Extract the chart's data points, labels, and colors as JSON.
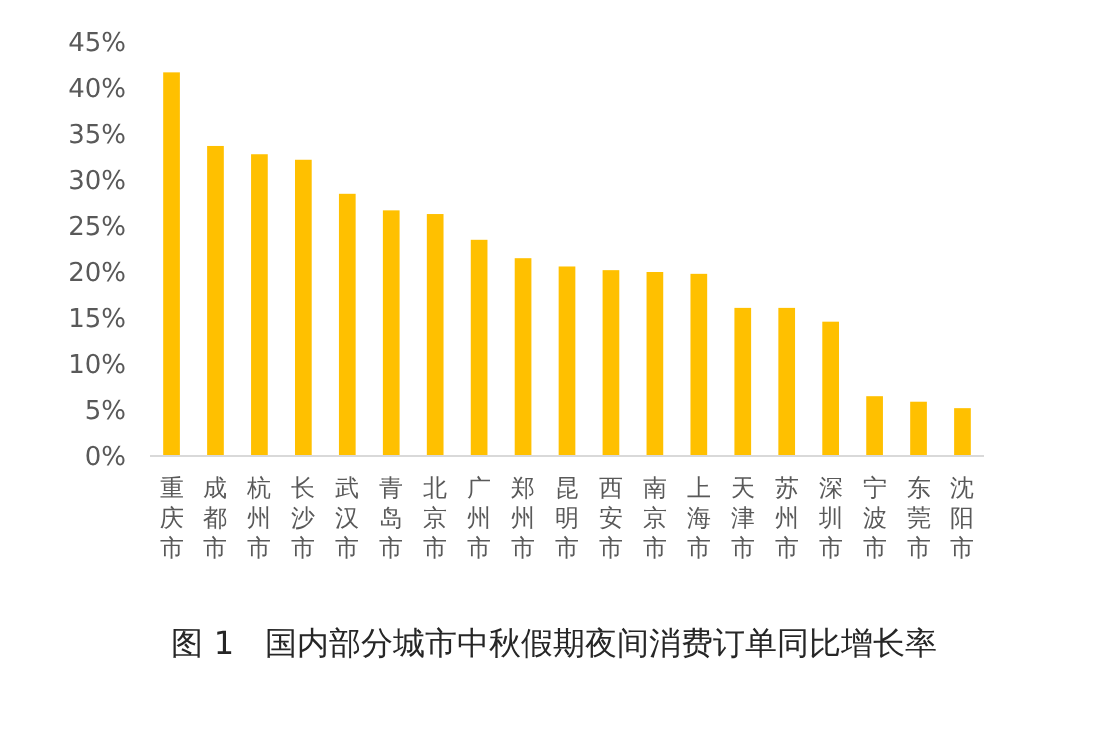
{
  "chart_data": {
    "type": "bar",
    "title": "图 1   国内部分城市中秋假期夜间消费订单同比增长率",
    "categories": [
      "重庆市",
      "成都市",
      "杭州市",
      "长沙市",
      "武汉市",
      "青岛市",
      "北京市",
      "广州市",
      "郑州市",
      "昆明市",
      "西安市",
      "南京市",
      "上海市",
      "天津市",
      "苏州市",
      "深圳市",
      "宁波市",
      "东莞市",
      "沈阳市"
    ],
    "values": [
      41.7,
      33.7,
      32.8,
      32.2,
      28.5,
      26.7,
      26.3,
      23.5,
      21.5,
      20.6,
      20.2,
      20.0,
      19.8,
      16.1,
      16.1,
      14.6,
      6.5,
      5.9,
      5.2
    ],
    "color": "#ffc000",
    "ylim": [
      0,
      45
    ],
    "yticks": [
      {
        "value": 0,
        "label": "0%"
      },
      {
        "value": 5,
        "label": "5%"
      },
      {
        "value": 10,
        "label": "10%"
      },
      {
        "value": 15,
        "label": "15%"
      },
      {
        "value": 20,
        "label": "20%"
      },
      {
        "value": 25,
        "label": "25%"
      },
      {
        "value": 30,
        "label": "30%"
      },
      {
        "value": 35,
        "label": "35%"
      },
      {
        "value": 40,
        "label": "40%"
      },
      {
        "value": 45,
        "label": "45%"
      }
    ],
    "grid": false
  }
}
